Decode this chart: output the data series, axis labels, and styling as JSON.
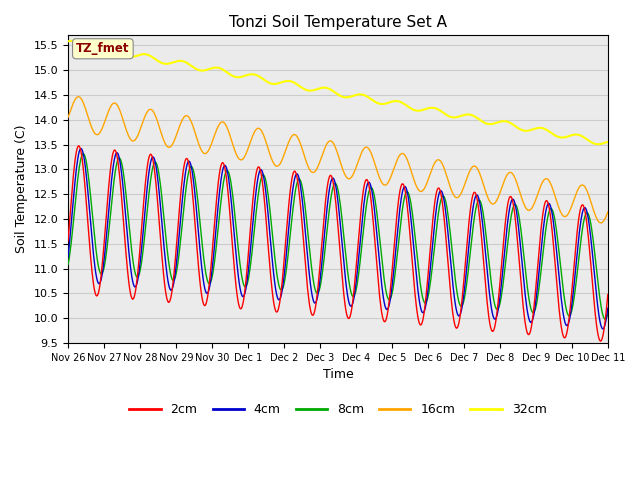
{
  "title": "Tonzi Soil Temperature Set A",
  "xlabel": "Time",
  "ylabel": "Soil Temperature (C)",
  "ylim": [
    9.5,
    15.7
  ],
  "annotation_text": "TZ_fmet",
  "annotation_color": "#8B0000",
  "annotation_bg": "#FFFFCC",
  "series": {
    "2cm": {
      "color": "#FF0000",
      "linewidth": 1.0
    },
    "4cm": {
      "color": "#0000CC",
      "linewidth": 1.0
    },
    "8cm": {
      "color": "#00AA00",
      "linewidth": 1.0
    },
    "16cm": {
      "color": "#FFA500",
      "linewidth": 1.0
    },
    "32cm": {
      "color": "#FFFF00",
      "linewidth": 1.5
    }
  },
  "xtick_labels": [
    "Nov 26",
    "Nov 27",
    "Nov 28",
    "Nov 29",
    "Nov 30",
    "Dec 1",
    "Dec 2",
    "Dec 3",
    "Dec 4",
    "Dec 5",
    "Dec 6",
    "Dec 7",
    "Dec 8",
    "Dec 9",
    "Dec 10",
    "Dec 11"
  ],
  "ytick_labels": [
    "9.5",
    "10.0",
    "10.5",
    "11.0",
    "11.5",
    "12.0",
    "12.5",
    "13.0",
    "13.5",
    "14.0",
    "14.5",
    "15.0",
    "15.5"
  ],
  "grid_color": "#CCCCCC",
  "bg_color": "#EBEBEB",
  "legend_entries": [
    "2cm",
    "4cm",
    "8cm",
    "16cm",
    "32cm"
  ]
}
